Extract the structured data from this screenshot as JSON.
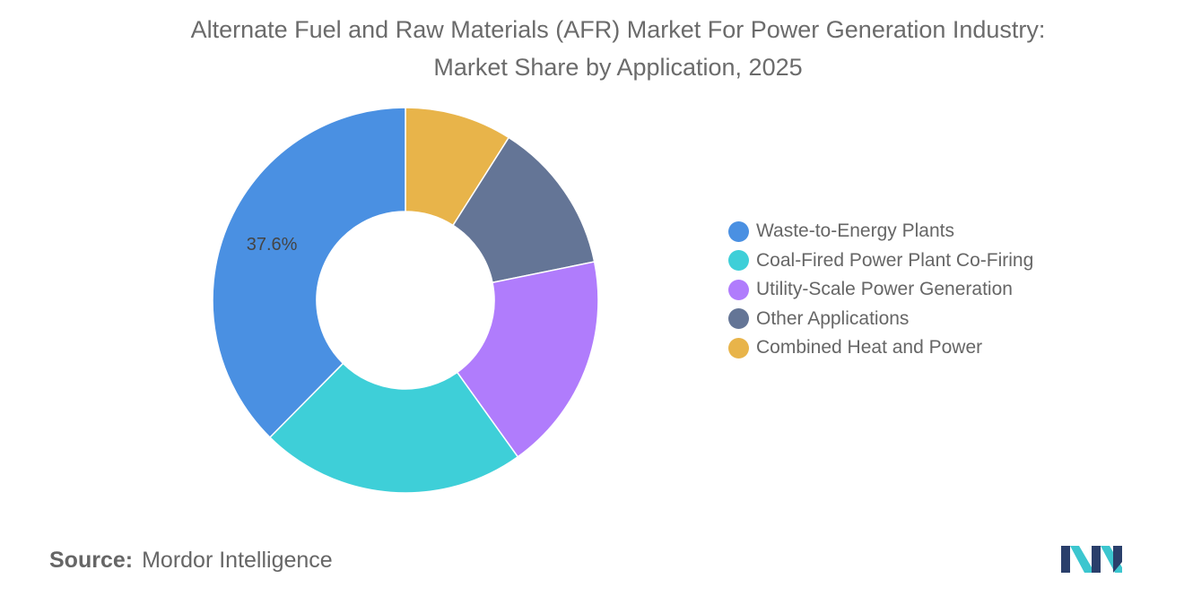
{
  "title": {
    "line1": "Alternate Fuel and Raw Materials (AFR) Market For Power Generation Industry:",
    "line2": "Market Share by Application, 2025"
  },
  "chart_data": {
    "type": "pie",
    "variant": "donut",
    "title": "Alternate Fuel and Raw Materials (AFR) Market For Power Generation Industry: Market Share by Application, 2025",
    "unit": "%",
    "legend_position": "right",
    "slices": [
      {
        "label": "Waste-to-Energy Plants",
        "value": 37.6,
        "color": "#4a90e2",
        "data_label": "37.6%"
      },
      {
        "label": "Coal-Fired Power Plant Co-Firing",
        "value": 22.3,
        "color": "#3ecfd8",
        "data_label": ""
      },
      {
        "label": "Utility-Scale Power Generation",
        "value": 18.3,
        "color": "#b07cfc",
        "data_label": ""
      },
      {
        "label": "Other Applications",
        "value": 12.8,
        "color": "#647596",
        "data_label": ""
      },
      {
        "label": "Combined Heat and Power",
        "value": 9.0,
        "color": "#e8b44a",
        "data_label": ""
      }
    ],
    "drawing_order": [
      4,
      3,
      2,
      1,
      0
    ]
  },
  "source": {
    "label": "Source:",
    "value": "Mordor Intelligence"
  },
  "logo": {
    "icon": "mordor-intelligence-logo-icon",
    "colors": [
      "#2a3f6b",
      "#3cc6cf"
    ]
  }
}
